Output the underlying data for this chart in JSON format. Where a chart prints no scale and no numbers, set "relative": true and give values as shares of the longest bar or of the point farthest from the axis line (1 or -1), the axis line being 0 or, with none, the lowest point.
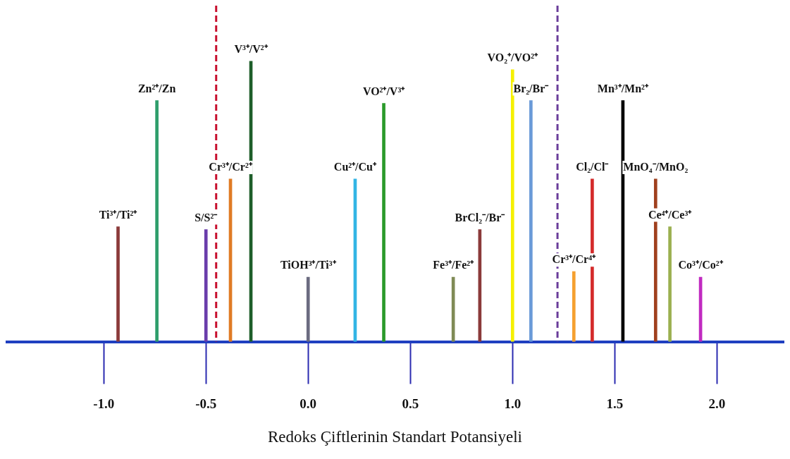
{
  "chart_data": {
    "type": "bar",
    "relative": true,
    "xlabel": "Redoks Çiftlerinin Standart Potansiyeli",
    "xlim": [
      -1.48,
      2.33
    ],
    "xticks": [
      {
        "value": -1,
        "label": "-1.0"
      },
      {
        "value": -0.5,
        "label": "-0.5"
      },
      {
        "value": 0,
        "label": "0.0"
      },
      {
        "value": 0.5,
        "label": "0.5"
      },
      {
        "value": 1,
        "label": "1.0"
      },
      {
        "value": 1.5,
        "label": "1.5"
      },
      {
        "value": 2,
        "label": "2.0"
      }
    ],
    "tick_labels": "x",
    "grid": false,
    "legend": false,
    "ref_lines": [
      {
        "axis": "x",
        "value": -0.45,
        "color": "#c8102e",
        "line_style": "dashed"
      },
      {
        "axis": "x",
        "value": 1.22,
        "color": "#6a3d9a",
        "line_style": "dashed"
      }
    ],
    "series": [
      {
        "name": "Ti³⁺/Ti²⁺",
        "color": "#8b3a3a",
        "x": [
          -0.93
        ],
        "values": [
          0.41
        ]
      },
      {
        "name": "Zn²⁺/Zn",
        "color": "#2e9e6b",
        "x": [
          -0.74
        ],
        "values": [
          0.86
        ]
      },
      {
        "name": "S/S²⁻",
        "color": "#6a3dab",
        "x": [
          -0.5
        ],
        "values": [
          0.4
        ]
      },
      {
        "name": "Cr³⁺/Cr²⁺",
        "color": "#e07b24",
        "x": [
          -0.38
        ],
        "values": [
          0.58
        ]
      },
      {
        "name": "V³⁺/V²⁺",
        "color": "#1e5e2a",
        "x": [
          -0.28
        ],
        "values": [
          1
        ]
      },
      {
        "name": "TiOH³⁺/Ti³⁺",
        "color": "#6b6b80",
        "x": [
          0
        ],
        "values": [
          0.23
        ]
      },
      {
        "name": "Cu²⁺/Cu⁺",
        "color": "#33b5e5",
        "x": [
          0.23
        ],
        "values": [
          0.58
        ]
      },
      {
        "name": "VO²⁺/V³⁺",
        "color": "#2a9a2a",
        "x": [
          0.37
        ],
        "values": [
          0.85
        ]
      },
      {
        "name": "Fe³⁺/Fe²⁺",
        "color": "#7f8a55",
        "x": [
          0.71
        ],
        "values": [
          0.23
        ]
      },
      {
        "name": "BrCl₂⁻/Br⁻",
        "color": "#8b3a3a",
        "x": [
          0.84
        ],
        "values": [
          0.4
        ]
      },
      {
        "name": "VO₂⁺/VO²⁺",
        "color": "#f5f000",
        "x": [
          1
        ],
        "values": [
          0.97
        ]
      },
      {
        "name": "Br₂/Br⁻",
        "color": "#6a9ad8",
        "x": [
          1.09
        ],
        "values": [
          0.86
        ]
      },
      {
        "name": "Cr³⁺/Cr⁴⁺",
        "color": "#f5a030",
        "x": [
          1.3
        ],
        "values": [
          0.25
        ]
      },
      {
        "name": "Cl₂/Cl⁻",
        "color": "#d42a2a",
        "x": [
          1.39
        ],
        "values": [
          0.58
        ]
      },
      {
        "name": "Mn³⁺/Mn²⁺",
        "color": "#000000",
        "x": [
          1.54
        ],
        "values": [
          0.86
        ]
      },
      {
        "name": "MnO₄⁻/MnO₂",
        "color": "#a0401e",
        "x": [
          1.7
        ],
        "values": [
          0.58
        ]
      },
      {
        "name": "Ce⁴⁺/Ce³⁺",
        "color": "#9bb050",
        "x": [
          1.77
        ],
        "values": [
          0.41
        ]
      },
      {
        "name": "Co³⁺/Co²⁺",
        "color": "#c02ac0",
        "x": [
          1.92
        ],
        "values": [
          0.23
        ]
      }
    ]
  }
}
